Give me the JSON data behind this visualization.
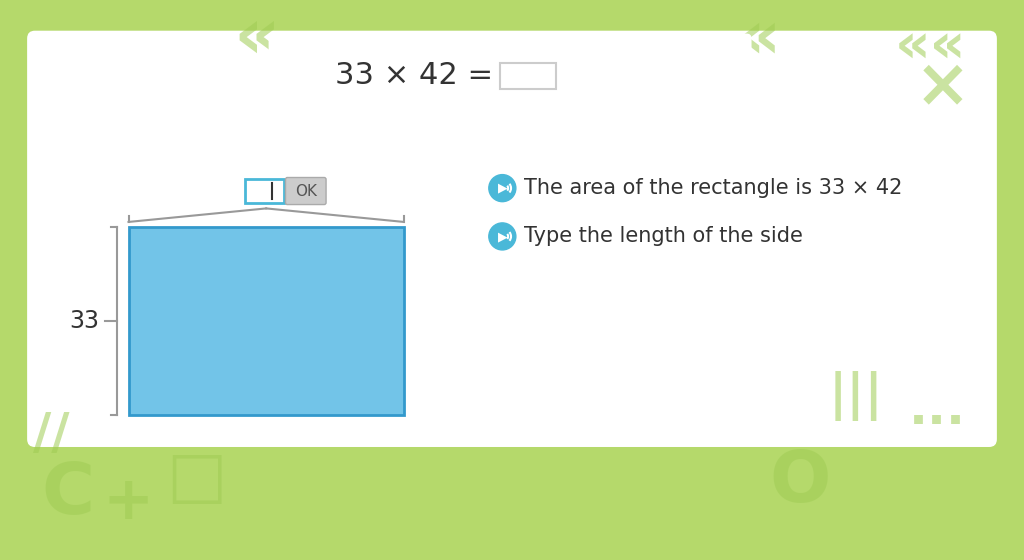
{
  "bg_color": "#b5d96b",
  "white_panel_color": "#ffffff",
  "top_box_color": "#ffffff",
  "equation_text": "33 × 42 =",
  "answer_box_color": "#ffffff",
  "answer_box_border": "#cccccc",
  "rect_fill_color": "#72c4e8",
  "rect_border_color": "#3399cc",
  "brace_color": "#999999",
  "label_33": "33",
  "instruction1": "The area of the rectangle is 33 × 42",
  "instruction2": "Type the length of the side",
  "icon_color": "#4ab8d8",
  "text_color": "#333333",
  "input_box_border": "#4ab8d8",
  "ok_button_color": "#cccccc",
  "ok_text": "OK"
}
